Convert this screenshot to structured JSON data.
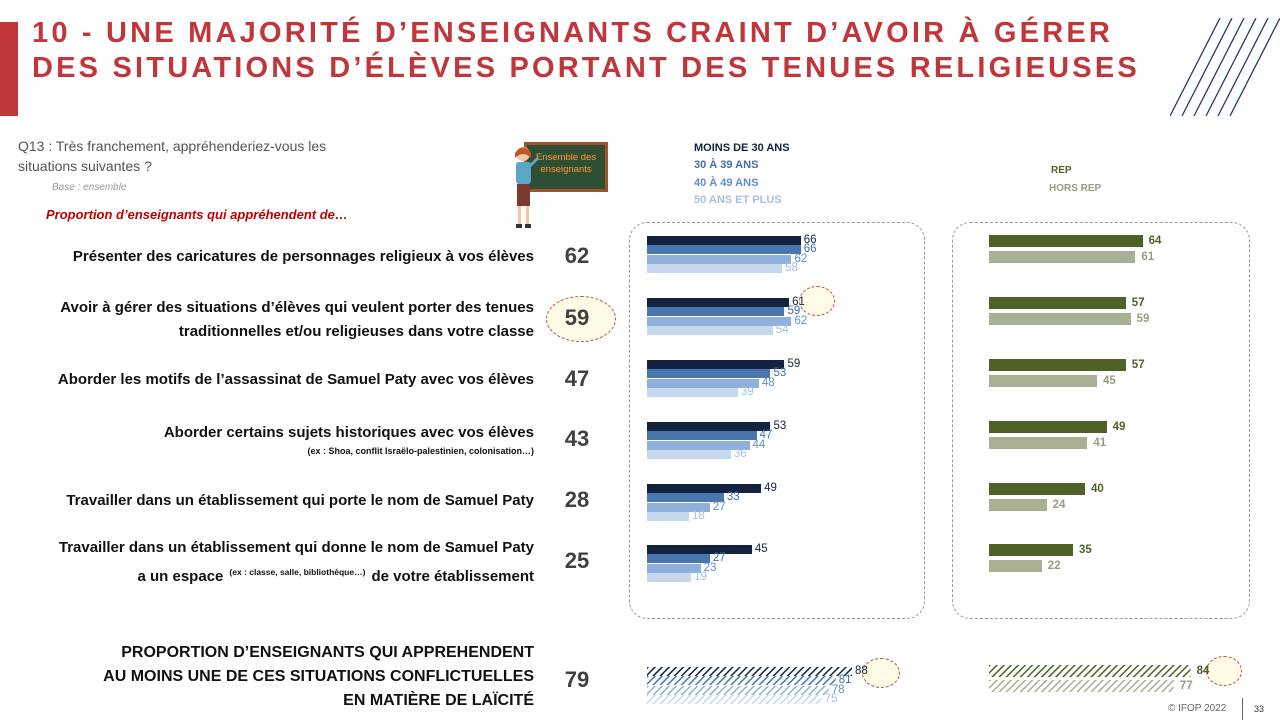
{
  "title": "10 - UNE MAJORITÉ D’ENSEIGNANTS CRAINT D’AVOIR À GÉRER DES SITUATIONS D’ÉLÈVES PORTANT DES TENUES RELIGIEUSES",
  "question": "Q13 : Très franchement, appréhenderiez-vous les situations suivantes ?",
  "base": "Base : ensemble",
  "proportion_label": "Proportion d’enseignants qui appréhendent de…",
  "teacher_board": "Ensemble des enseignants",
  "colors": {
    "accent": "#c0363b",
    "age_series": [
      "#13233f",
      "#4a76b0",
      "#8fb0da",
      "#c6d8ee"
    ],
    "rep": "#4e6228",
    "hors_rep": "#a8b094",
    "age_label_colors": [
      "#13233f",
      "#3f6fb0",
      "#5f8ecc",
      "#a7c0e0"
    ],
    "rep_label_colors": [
      "#4e6228",
      "#9a9a86"
    ]
  },
  "items": [
    {
      "text": "Présenter des caricatures de personnages religieux à vos élèves",
      "sub": "",
      "total": "62"
    },
    {
      "text": "Avoir à gérer des situations d’élèves qui veulent porter des tenues traditionnelles et/ou religieuses dans votre classe",
      "sub": "",
      "total": "59"
    },
    {
      "text": "Aborder les motifs de l’assassinat de Samuel Paty avec vos élèves",
      "sub": "",
      "total": "47"
    },
    {
      "text": "Aborder certains sujets historiques avec vos élèves",
      "sub": "(ex : Shoa, conflit Israëlo-palestinien,  colonisation…)",
      "total": "43"
    },
    {
      "text": "Travailler dans un établissement qui porte le nom de Samuel Paty",
      "sub": "",
      "total": "28"
    },
    {
      "text_a": "Travailler dans un établissement qui donne le nom de Samuel Paty",
      "text_b1": "a un espace",
      "text_b_sub": "(ex : classe, salle, bibliothèque…)",
      "text_b2": "de votre établissement",
      "total": "25"
    }
  ],
  "summary": {
    "lines": [
      "PROPORTION D’ENSEIGNANTS QUI APPREHENDENT",
      "AU MOINS UNE DE CES SITUATIONS CONFLICTUELLES",
      "EN MATIÈRE DE LAÏCITÉ"
    ],
    "total": "79"
  },
  "footer": {
    "copyright": "© IFOP 2022",
    "page": "33"
  },
  "chart_data": [
    {
      "type": "bar",
      "orientation": "horizontal",
      "title": "",
      "series_names": [
        "MOINS DE 30 ANS",
        "30 À 39 ANS",
        "40 À 49 ANS",
        "50 ANS ET PLUS"
      ],
      "values": [
        [
          66,
          66,
          62,
          58
        ],
        [
          61,
          59,
          62,
          54
        ],
        [
          59,
          53,
          48,
          39
        ],
        [
          53,
          47,
          44,
          36
        ],
        [
          49,
          33,
          27,
          18
        ],
        [
          45,
          27,
          23,
          19
        ]
      ],
      "summary_values": [
        88,
        81,
        78,
        75
      ],
      "highlight": {
        "row": 1,
        "series": 0
      },
      "grid": false
    },
    {
      "type": "bar",
      "orientation": "horizontal",
      "title": "",
      "series_names": [
        "REP",
        "HORS REP"
      ],
      "values": [
        [
          64,
          61
        ],
        [
          57,
          59
        ],
        [
          57,
          45
        ],
        [
          49,
          41
        ],
        [
          40,
          24
        ],
        [
          35,
          22
        ]
      ],
      "summary_values": [
        84,
        77
      ],
      "highlight": {
        "summary": 0
      },
      "grid": false
    }
  ]
}
